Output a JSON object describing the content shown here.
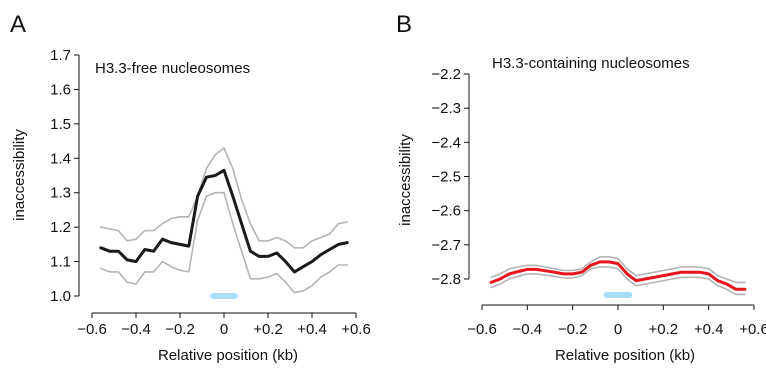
{
  "chart_data": [
    {
      "type": "line",
      "panel_label": "A",
      "title": "H3.3-free nucleosomes",
      "xlabel": "Relative position (kb)",
      "ylabel": "inaccessibility",
      "xlim": [
        -0.6,
        0.6
      ],
      "ylim": [
        1.0,
        1.7
      ],
      "xticks": [
        -0.6,
        -0.4,
        -0.2,
        0,
        0.2,
        0.4,
        0.6
      ],
      "xtick_labels": [
        "−0.6",
        "−0.4",
        "−0.2",
        "0",
        "+0.2",
        "+0.4",
        "+0.6"
      ],
      "yticks": [
        1.0,
        1.1,
        1.2,
        1.3,
        1.4,
        1.5,
        1.6,
        1.7
      ],
      "ytick_labels": [
        "1.0",
        "1.1",
        "1.2",
        "1.3",
        "1.4",
        "1.5",
        "1.6",
        "1.7"
      ],
      "grid": false,
      "colors": {
        "mean": "#1a1a1a",
        "bounds": "#b4b4b4",
        "marker": "#a6dcf4"
      },
      "marker_bar": [
        -0.05,
        0.05
      ],
      "x": [
        -0.56,
        -0.52,
        -0.48,
        -0.44,
        -0.4,
        -0.36,
        -0.32,
        -0.28,
        -0.24,
        -0.2,
        -0.16,
        -0.12,
        -0.08,
        -0.04,
        0.0,
        0.04,
        0.08,
        0.12,
        0.16,
        0.2,
        0.24,
        0.28,
        0.32,
        0.36,
        0.4,
        0.44,
        0.48,
        0.52,
        0.56
      ],
      "series": [
        {
          "role": "upper",
          "values": [
            1.2,
            1.195,
            1.19,
            1.16,
            1.165,
            1.19,
            1.19,
            1.21,
            1.225,
            1.23,
            1.23,
            1.29,
            1.37,
            1.41,
            1.43,
            1.37,
            1.28,
            1.21,
            1.16,
            1.16,
            1.17,
            1.16,
            1.14,
            1.14,
            1.16,
            1.17,
            1.18,
            1.21,
            1.215
          ]
        },
        {
          "role": "mean",
          "values": [
            1.14,
            1.13,
            1.13,
            1.105,
            1.1,
            1.135,
            1.13,
            1.165,
            1.155,
            1.15,
            1.145,
            1.29,
            1.345,
            1.35,
            1.365,
            1.29,
            1.21,
            1.13,
            1.115,
            1.115,
            1.125,
            1.1,
            1.07,
            1.085,
            1.1,
            1.12,
            1.135,
            1.15,
            1.155
          ]
        },
        {
          "role": "lower",
          "values": [
            1.08,
            1.07,
            1.07,
            1.04,
            1.035,
            1.07,
            1.07,
            1.1,
            1.085,
            1.075,
            1.07,
            1.22,
            1.29,
            1.3,
            1.3,
            1.21,
            1.13,
            1.05,
            1.05,
            1.055,
            1.065,
            1.04,
            1.01,
            1.015,
            1.03,
            1.055,
            1.07,
            1.09,
            1.09
          ]
        }
      ]
    },
    {
      "type": "line",
      "panel_label": "B",
      "title": "H3.3-containing nucleosomes",
      "xlabel": "Relative position (kb)",
      "ylabel": "inaccessibility",
      "xlim": [
        -0.6,
        0.6
      ],
      "ylim": [
        -2.8,
        -2.2
      ],
      "xticks": [
        -0.6,
        -0.4,
        -0.2,
        0,
        0.2,
        0.4,
        0.6
      ],
      "xtick_labels": [
        "−0.6",
        "−0.4",
        "−0.2",
        "0",
        "+0.2",
        "+0.4",
        "+0.6"
      ],
      "yticks": [
        -2.8,
        -2.7,
        -2.6,
        -2.5,
        -2.4,
        -2.3,
        -2.2
      ],
      "ytick_labels": [
        "−2.8",
        "−2.7",
        "−2.6",
        "−2.5",
        "−2.4",
        "−2.3",
        "−2.2"
      ],
      "grid": false,
      "colors": {
        "mean": "#e8141b",
        "bounds": "#b4b4b4",
        "marker": "#a6dcf4"
      },
      "marker_bar": [
        -0.05,
        0.05
      ],
      "x": [
        -0.56,
        -0.52,
        -0.48,
        -0.44,
        -0.4,
        -0.36,
        -0.32,
        -0.28,
        -0.24,
        -0.2,
        -0.16,
        -0.12,
        -0.08,
        -0.04,
        0.0,
        0.04,
        0.08,
        0.12,
        0.16,
        0.2,
        0.24,
        0.28,
        0.32,
        0.36,
        0.4,
        0.44,
        0.48,
        0.52,
        0.56
      ],
      "series": [
        {
          "role": "upper",
          "values": [
            -2.795,
            -2.785,
            -2.77,
            -2.765,
            -2.76,
            -2.76,
            -2.765,
            -2.77,
            -2.775,
            -2.775,
            -2.77,
            -2.75,
            -2.735,
            -2.735,
            -2.74,
            -2.77,
            -2.79,
            -2.785,
            -2.78,
            -2.775,
            -2.77,
            -2.765,
            -2.765,
            -2.765,
            -2.77,
            -2.79,
            -2.8,
            -2.81,
            -2.81
          ]
        },
        {
          "role": "mean",
          "values": [
            -2.81,
            -2.8,
            -2.785,
            -2.778,
            -2.772,
            -2.772,
            -2.776,
            -2.78,
            -2.785,
            -2.785,
            -2.78,
            -2.76,
            -2.75,
            -2.75,
            -2.755,
            -2.785,
            -2.805,
            -2.8,
            -2.795,
            -2.79,
            -2.785,
            -2.78,
            -2.78,
            -2.78,
            -2.785,
            -2.805,
            -2.815,
            -2.83,
            -2.83
          ]
        },
        {
          "role": "lower",
          "values": [
            -2.825,
            -2.815,
            -2.8,
            -2.792,
            -2.785,
            -2.785,
            -2.789,
            -2.792,
            -2.797,
            -2.797,
            -2.79,
            -2.77,
            -2.765,
            -2.765,
            -2.77,
            -2.8,
            -2.82,
            -2.815,
            -2.81,
            -2.805,
            -2.8,
            -2.795,
            -2.795,
            -2.795,
            -2.8,
            -2.82,
            -2.83,
            -2.845,
            -2.845
          ]
        }
      ]
    }
  ]
}
